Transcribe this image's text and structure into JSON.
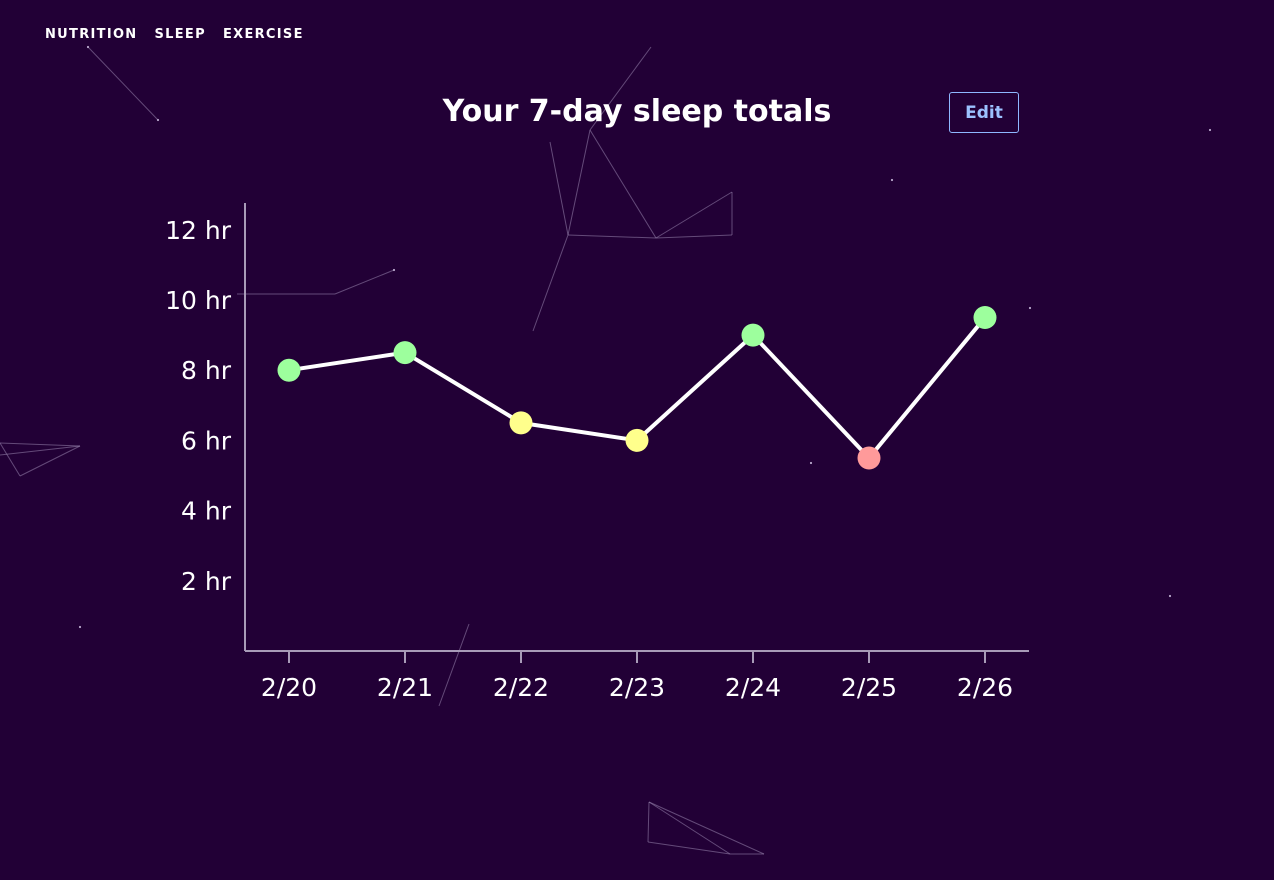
{
  "nav": {
    "items": [
      {
        "label": "NUTRITION"
      },
      {
        "label": "SLEEP"
      },
      {
        "label": "EXERCISE"
      }
    ]
  },
  "header": {
    "title": "Your 7-day sleep totals",
    "edit_label": "Edit"
  },
  "colors": {
    "background": "#220036",
    "line": "#ffffff",
    "good": "#9dff9d",
    "ok": "#ffff8c",
    "bad": "#ff9a9a",
    "edit_border": "#8fb8ff"
  },
  "chart_data": {
    "type": "line",
    "title": "Your 7-day sleep totals",
    "xlabel": "",
    "ylabel": "",
    "categories": [
      "2/20",
      "2/21",
      "2/22",
      "2/23",
      "2/24",
      "2/25",
      "2/26"
    ],
    "values": [
      8,
      8.5,
      6.5,
      6,
      9,
      5.5,
      9.5
    ],
    "point_status": [
      "good",
      "good",
      "ok",
      "ok",
      "good",
      "bad",
      "good"
    ],
    "yticks": [
      2,
      4,
      6,
      8,
      10,
      12
    ],
    "ytick_labels": [
      "2 hr",
      "4 hr",
      "6 hr",
      "8 hr",
      "10 hr",
      "12 hr"
    ],
    "ylim": [
      0,
      12.75
    ],
    "grid": false
  }
}
